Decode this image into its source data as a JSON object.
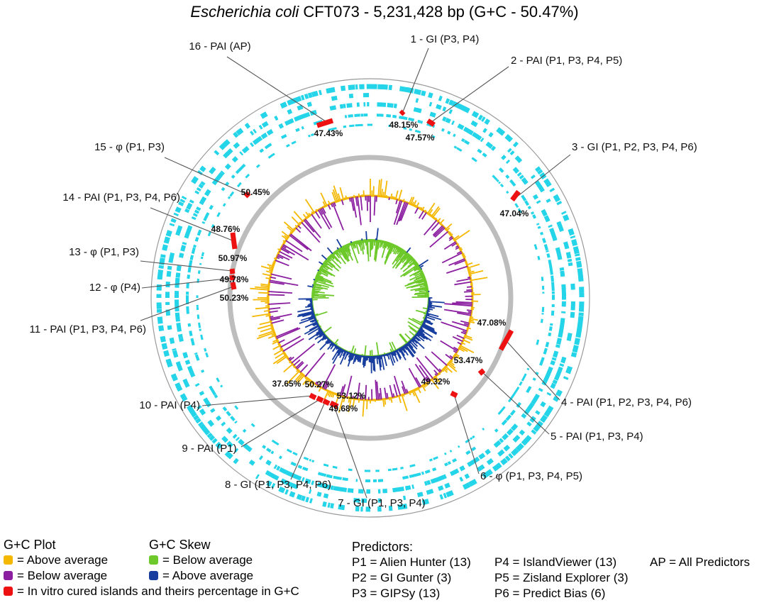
{
  "title": {
    "organism": "Escherichia coli",
    "rest": " CFT073 - 5,231,428 bp (G+C - 50.47%)"
  },
  "colors": {
    "gc_above": "#f5b800",
    "gc_below": "#8b1fa0",
    "skew_below": "#6dc92a",
    "skew_above": "#173d9e",
    "island": "#ee1111",
    "predictor_rings": "#24d4e8",
    "guide_ring": "#bdbdbd",
    "leader": "#555555"
  },
  "islands": [
    {
      "label": "1 - GI (P3, P4)",
      "gc": "48.15%"
    },
    {
      "label": "2 - PAI (P1, P3, P4, P5)",
      "gc": "47.57%"
    },
    {
      "label": "3 - GI (P1, P2, P3, P4, P6)",
      "gc": "47.04%"
    },
    {
      "label": "4 - PAI (P1, P2, P3, P4, P6)",
      "gc": "47.08%"
    },
    {
      "label": "5 - PAI (P1, P3, P4)",
      "gc": "53.47%"
    },
    {
      "label": "6 - φ (P1, P3, P4, P5)",
      "gc": "49.32%"
    },
    {
      "label": "7 - GI (P1, P3, P4)",
      "gc": "49.68%"
    },
    {
      "label": "8 - GI (P1, P3, P4, P6)",
      "gc": "53.12%"
    },
    {
      "label": "9 - PAI (P1)",
      "gc": "50.27%"
    },
    {
      "label": "10 - PAI (P4)",
      "gc": "37.65%"
    },
    {
      "label": "11 - PAI (P1, P3, P4, P6)",
      "gc": "50.23%"
    },
    {
      "label": "12 - φ (P4)",
      "gc": "49.78%"
    },
    {
      "label": "13 - φ (P1, P3)",
      "gc": "50.97%"
    },
    {
      "label": "14 - PAI (P1, P3, P4, P6)",
      "gc": "48.76%"
    },
    {
      "label": "15 - φ (P1, P3)",
      "gc": "50.45%"
    },
    {
      "label": "16 - PAI (AP)",
      "gc": "47.43%"
    }
  ],
  "legend": {
    "gc_plot": {
      "title": "G+C Plot",
      "above": "= Above average",
      "below": "= Below average",
      "cured": "= In vitro cured islands and theirs percentage in G+C"
    },
    "gc_skew": {
      "title": "G+C Skew",
      "below": "= Below average",
      "above": "= Above average"
    },
    "predictors": {
      "title": "Predictors:",
      "p1": "P1 = Alien Hunter (13)",
      "p2": "P2 = GI Gunter (3)",
      "p3": "P3 = GIPSy (13)",
      "p4": "P4 = IslandViewer (13)",
      "p5": "P5 = Zisland Explorer (3)",
      "p6": "P6 = Predict Bias (6)",
      "ap": "AP = All Predictors"
    }
  }
}
